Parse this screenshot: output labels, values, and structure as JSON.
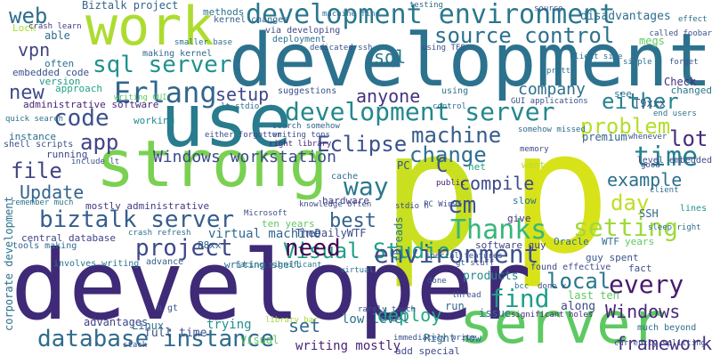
{
  "cloud": {
    "words": [
      {
        "text": "p",
        "color": "#c8e020"
      },
      {
        "text": "p",
        "color": "#d8e219"
      },
      {
        "text": "developer",
        "color": "#3f2a78"
      },
      {
        "text": "development",
        "color": "#2c728e"
      },
      {
        "text": "use",
        "color": "#287c8e"
      },
      {
        "text": "strong",
        "color": "#7ad151"
      },
      {
        "text": "work",
        "color": "#addc30"
      },
      {
        "text": "server",
        "color": "#5ec962"
      },
      {
        "text": "development environment",
        "color": "#2a788e"
      },
      {
        "text": "development server",
        "color": "#23888e"
      },
      {
        "text": "database instance",
        "color": "#2f6b8e"
      },
      {
        "text": "Visual Studio",
        "color": "#1fa187"
      },
      {
        "text": "environment",
        "color": "#3b528b"
      },
      {
        "text": "biztalk server",
        "color": "#365d8d"
      },
      {
        "text": "sql server",
        "color": "#21918c"
      },
      {
        "text": "source control",
        "color": "#2d708e"
      },
      {
        "text": "Erlang",
        "color": "#31668e"
      },
      {
        "text": "setting",
        "color": "#9fda3a"
      },
      {
        "text": "Windows workstation",
        "color": "#3e4a89"
      },
      {
        "text": "problem",
        "color": "#b5de2b"
      },
      {
        "text": "machine",
        "color": "#365c8d"
      },
      {
        "text": "change",
        "color": "#2e6f8e"
      },
      {
        "text": "time",
        "color": "#277f8e"
      },
      {
        "text": "Thanks",
        "color": "#35b779"
      },
      {
        "text": "way",
        "color": "#2a788e"
      },
      {
        "text": "find",
        "color": "#1f9e89"
      },
      {
        "text": "every",
        "color": "#481a6c"
      },
      {
        "text": "need",
        "color": "#440154"
      },
      {
        "text": "project",
        "color": "#3e4989"
      },
      {
        "text": "code",
        "color": "#3b518b"
      },
      {
        "text": "app",
        "color": "#414487"
      },
      {
        "text": "file",
        "color": "#414487"
      },
      {
        "text": "Update",
        "color": "#32658e"
      },
      {
        "text": "Eclipse",
        "color": "#3b518b"
      },
      {
        "text": "anyone",
        "color": "#46327e"
      },
      {
        "text": "setup",
        "color": "#3f4788"
      },
      {
        "text": "company",
        "color": "#2c718e"
      },
      {
        "text": "either",
        "color": "#26828e"
      },
      {
        "text": "lot",
        "color": "#472d7b"
      },
      {
        "text": "day",
        "color": "#bddf26"
      },
      {
        "text": "example",
        "color": "#2d708e"
      },
      {
        "text": "compile",
        "color": "#3e4a89"
      },
      {
        "text": "em",
        "color": "#3b528b"
      },
      {
        "text": "best",
        "color": "#33628d"
      },
      {
        "text": "local",
        "color": "#2a788e"
      },
      {
        "text": "framework",
        "color": "#46327e"
      },
      {
        "text": "Windows",
        "color": "#482878"
      },
      {
        "text": "deploy",
        "color": "#22a884"
      },
      {
        "text": "web",
        "color": "#2e6e8e"
      },
      {
        "text": "vpn",
        "color": "#414487"
      },
      {
        "text": "new",
        "color": "#3e4a89"
      },
      {
        "text": "sql",
        "color": "#2a778e"
      },
      {
        "text": "C",
        "color": "#3b518b"
      },
      {
        "text": "set",
        "color": "#2f6c8e"
      },
      {
        "text": "low level",
        "color": "#2c728e"
      },
      {
        "text": "Biztalk project",
        "color": "#32648e"
      },
      {
        "text": "virtual machine",
        "color": "#31688e"
      },
      {
        "text": "writing mostly",
        "color": "#482475"
      },
      {
        "text": "full time",
        "color": "#3b518b"
      },
      {
        "text": "trying",
        "color": "#21908d"
      },
      {
        "text": "advantages",
        "color": "#414487"
      },
      {
        "text": "Linux",
        "color": "#2d708e"
      },
      {
        "text": "Right now",
        "color": "#2e6e8e"
      },
      {
        "text": "products",
        "color": "#238a8d"
      },
      {
        "text": "issue",
        "color": "#2f6c8e"
      },
      {
        "text": "along",
        "color": "#3e4a89"
      },
      {
        "text": "last ten",
        "color": "#5ec962"
      },
      {
        "text": "TheDailyWTF",
        "color": "#3e4a89"
      },
      {
        "text": "PC",
        "color": "#3a538b"
      },
      {
        "text": "SSH",
        "color": "#31688e"
      },
      {
        "text": "Check",
        "color": "#472d7b"
      },
      {
        "text": "T9xxx",
        "color": "#38588c"
      },
      {
        "text": "premium",
        "color": "#33628d"
      },
      {
        "text": "disadvantages",
        "color": "#2e6e8e"
      },
      {
        "text": "megs",
        "color": "#63cb5f"
      },
      {
        "text": "able",
        "color": "#2f6c8e"
      },
      {
        "text": "Lock",
        "color": "#aadc32"
      },
      {
        "text": "often",
        "color": "#2d708e"
      },
      {
        "text": "version",
        "color": "#1f9a8a"
      },
      {
        "text": "approach",
        "color": "#20a386"
      },
      {
        "text": "embedded code",
        "color": "#3b528b"
      },
      {
        "text": "administrative software",
        "color": "#482576"
      },
      {
        "text": "working",
        "color": "#238a8d"
      },
      {
        "text": "instance",
        "color": "#2e6e8e"
      },
      {
        "text": "shell scripts",
        "color": "#3b528b"
      },
      {
        "text": "running",
        "color": "#3f4889"
      },
      {
        "text": "mostly administrative",
        "color": "#443a83"
      },
      {
        "text": "central database",
        "color": "#414487"
      },
      {
        "text": "tools making",
        "color": "#31688e"
      },
      {
        "text": "involves writing",
        "color": "#2c728e"
      },
      {
        "text": "advance",
        "color": "#35608d"
      },
      {
        "text": "writing shell",
        "color": "#2e6e8e"
      },
      {
        "text": "ten years",
        "color": "#5ec962"
      },
      {
        "text": "P8xx",
        "color": "#33638d"
      },
      {
        "text": "slow",
        "color": "#2d708e"
      },
      {
        "text": "give",
        "color": "#472c7a"
      },
      {
        "text": "Oracle",
        "color": "#2d708e"
      },
      {
        "text": "guy spent",
        "color": "#39568c"
      },
      {
        "text": "software guy",
        "color": "#414487"
      },
      {
        "text": "WTF",
        "color": "#2d708e"
      },
      {
        "text": "years",
        "color": "#5ec962"
      },
      {
        "text": "fact",
        "color": "#3b528b"
      },
      {
        "text": "found effective",
        "color": "#3e4a89"
      },
      {
        "text": "much beyond",
        "color": "#2e6e8e"
      },
      {
        "text": "add special",
        "color": "#3e4a89"
      },
      {
        "text": "changed",
        "color": "#2a788e"
      },
      {
        "text": "see",
        "color": "#2a788e"
      },
      {
        "text": "want",
        "color": "#b8de29"
      },
      {
        "text": "net",
        "color": "#1fa187"
      },
      {
        "text": "hardware",
        "color": "#433e85"
      },
      {
        "text": "cache",
        "color": "#2f6c8e"
      },
      {
        "text": "methods",
        "color": "#2c728e"
      },
      {
        "text": "making kernel",
        "color": "#31688e"
      },
      {
        "text": "suggestions",
        "color": "#3b528b"
      },
      {
        "text": "using",
        "color": "#2d708e"
      },
      {
        "text": "deployment",
        "color": "#2d708e"
      },
      {
        "text": "via developing",
        "color": "#3e4a89"
      },
      {
        "text": "kernel changes",
        "color": "#33628d"
      },
      {
        "text": "writing GUI",
        "color": "#5ec962"
      },
      {
        "text": "crash learn",
        "color": "#443983"
      },
      {
        "text": "lines",
        "color": "#1f968b"
      },
      {
        "text": "level embedded",
        "color": "#3e4a89"
      },
      {
        "text": "end users",
        "color": "#2c728e"
      },
      {
        "text": "quick search",
        "color": "#2d708e"
      },
      {
        "text": "remember much",
        "color": "#2c728e"
      },
      {
        "text": "either forgotten",
        "color": "#3e4a89"
      },
      {
        "text": "search somehow",
        "color": "#33628d"
      },
      {
        "text": "writing tons",
        "color": "#3b528b"
      },
      {
        "text": "right library",
        "color": "#482576"
      },
      {
        "text": "knowledge often",
        "color": "#3e4a89"
      },
      {
        "text": "crash refresh",
        "color": "#2e6e8e"
      },
      {
        "text": "special features",
        "color": "#3e4a89"
      },
      {
        "text": "gt stuff",
        "color": "#3b528b"
      },
      {
        "text": "significant holes",
        "color": "#472d7b"
      },
      {
        "text": "done x",
        "color": "#3b528b"
      },
      {
        "text": "facing significant",
        "color": "#2a788e"
      },
      {
        "text": "library bar",
        "color": "#a2da37"
      },
      {
        "text": "Visual",
        "color": "#5ec962"
      },
      {
        "text": "h gt",
        "color": "#3b528b"
      },
      {
        "text": "include lt",
        "color": "#3b528b"
      },
      {
        "text": "corporate development",
        "color": "#2c728e"
      },
      {
        "text": "threads",
        "color": "#2a788e"
      },
      {
        "text": "run",
        "color": "#31688e"
      },
      {
        "text": "GUI applications",
        "color": "#3b528b"
      },
      {
        "text": "lt stdio",
        "color": "#2e6e8e"
      },
      {
        "text": "stdio h",
        "color": "#3e4a89"
      },
      {
        "text": "called foobar",
        "color": "#3b528b"
      },
      {
        "text": "bcc",
        "color": "#2d708e"
      },
      {
        "text": "public",
        "color": "#482576"
      },
      {
        "text": "virtual",
        "color": "#2d708e"
      },
      {
        "text": "Microsoft",
        "color": "#3b528b"
      },
      {
        "text": "stack",
        "color": "#3e4a89"
      },
      {
        "text": "rarely touch",
        "color": "#3b528b"
      },
      {
        "text": "PC Win95",
        "color": "#3b528b"
      },
      {
        "text": "immediately write",
        "color": "#3b528b"
      },
      {
        "text": "currently splitting",
        "color": "#3e4a89"
      },
      {
        "text": "machine fine",
        "color": "#2e6e8e"
      },
      {
        "text": "sleep right",
        "color": "#2e6e8e"
      },
      {
        "text": "dedicated ssh",
        "color": "#3b528b"
      },
      {
        "text": "somehow missed",
        "color": "#2e6e8e"
      },
      {
        "text": "effect",
        "color": "#2d708e"
      },
      {
        "text": "whenever",
        "color": "#3b528b"
      },
      {
        "text": "client",
        "color": "#2e6e8e"
      },
      {
        "text": "done",
        "color": "#3b528b"
      },
      {
        "text": "using TFS",
        "color": "#3e4a89"
      },
      {
        "text": "pretty",
        "color": "#2d708e"
      },
      {
        "text": "source",
        "color": "#3b528b"
      },
      {
        "text": "simple",
        "color": "#2d708e"
      },
      {
        "text": "smaller base",
        "color": "#2e6e8e"
      },
      {
        "text": "thread",
        "color": "#3b528b"
      },
      {
        "text": "good",
        "color": "#3e4a89"
      },
      {
        "text": "testing",
        "color": "#2e6e8e"
      },
      {
        "text": "forget",
        "color": "#3b528b"
      },
      {
        "text": "client side",
        "color": "#2d708e"
      },
      {
        "text": "memory",
        "color": "#3e4a89"
      },
      {
        "text": "control",
        "color": "#2e6e8e"
      },
      {
        "text": "always",
        "color": "#3b528b"
      },
      {
        "text": "bar",
        "color": "#2d708e"
      },
      {
        "text": "word",
        "color": "#3e4a89"
      },
      {
        "text": "kind",
        "color": "#3b528b"
      },
      {
        "text": "net",
        "color": "#2e6e8e"
      },
      {
        "text": "share",
        "color": "#3b528b"
      }
    ]
  }
}
